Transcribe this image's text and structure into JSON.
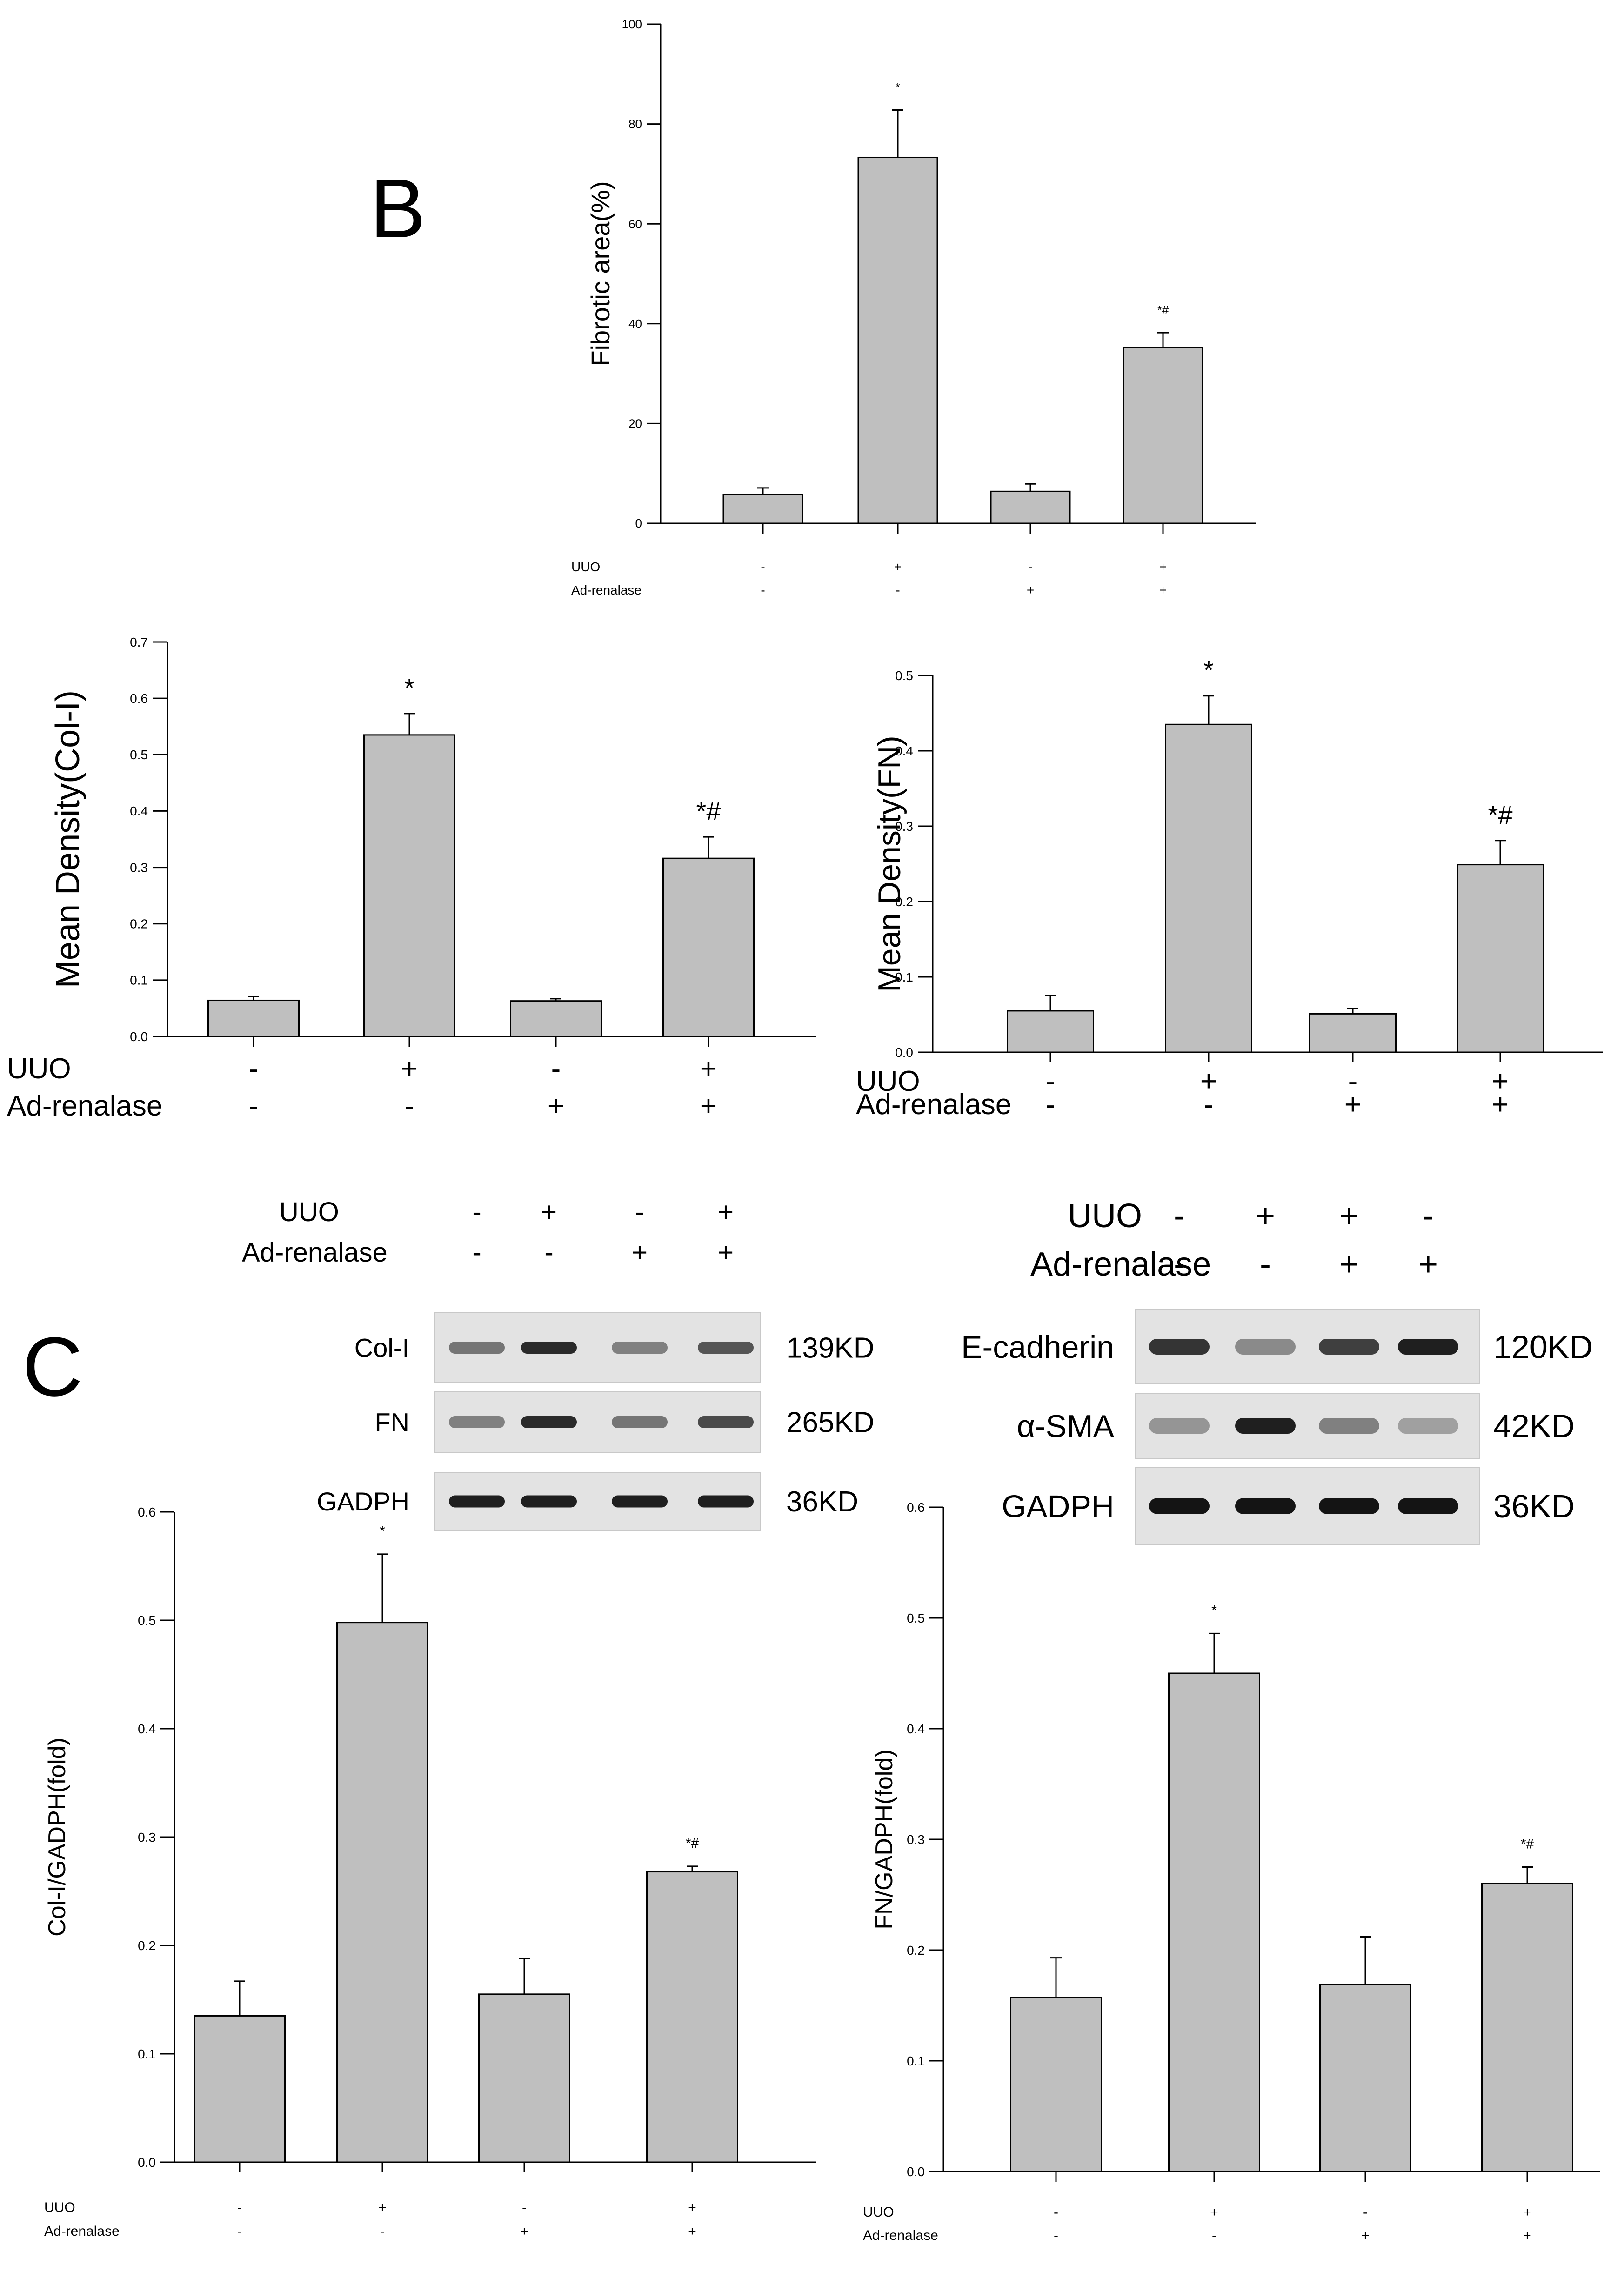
{
  "panel_labels": {
    "b": "B",
    "c": "C"
  },
  "chart_data": [
    {
      "id": "fibrotic",
      "type": "bar",
      "ylabel": "Fibrotic area(%)",
      "ylim": [
        0,
        100
      ],
      "yticks": [
        "0",
        "20",
        "40",
        "60",
        "80",
        "100"
      ],
      "values": [
        5.8,
        73.3,
        6.4,
        35.2
      ],
      "errors": [
        1.3,
        9.5,
        1.5,
        3.0
      ],
      "annotations": [
        "",
        "*",
        "",
        "*#"
      ],
      "row_labels": [
        "UUO",
        "Ad-renalase"
      ],
      "row_values": [
        [
          "-",
          "+",
          "-",
          "+"
        ],
        [
          "-",
          "-",
          "+",
          "+"
        ]
      ]
    },
    {
      "id": "coli-density",
      "type": "bar",
      "ylabel": "Mean Density(Col-I)",
      "ylim": [
        0,
        0.7
      ],
      "yticks": [
        "0.0",
        "0.1",
        "0.2",
        "0.3",
        "0.4",
        "0.5",
        "0.6",
        "0.7"
      ],
      "values": [
        0.064,
        0.535,
        0.063,
        0.316
      ],
      "errors": [
        0.007,
        0.038,
        0.004,
        0.038
      ],
      "annotations": [
        "",
        "*",
        "",
        "*#"
      ],
      "row_labels": [
        "UUO",
        "Ad-renalase"
      ],
      "row_values": [
        [
          "-",
          "+",
          "-",
          "+"
        ],
        [
          "-",
          "-",
          "+",
          "+"
        ]
      ]
    },
    {
      "id": "fn-density",
      "type": "bar",
      "ylabel": "Mean Density(FN)",
      "ylim": [
        0,
        0.5
      ],
      "yticks": [
        "0.0",
        "0.1",
        "0.2",
        "0.3",
        "0.4",
        "0.5"
      ],
      "values": [
        0.055,
        0.435,
        0.051,
        0.249
      ],
      "errors": [
        0.02,
        0.038,
        0.007,
        0.032
      ],
      "annotations": [
        "",
        "*",
        "",
        "*#"
      ],
      "row_labels": [
        "UUO",
        "Ad-renalase"
      ],
      "row_values": [
        [
          "-",
          "+",
          "-",
          "+"
        ],
        [
          "-",
          "-",
          "+",
          "+"
        ]
      ]
    },
    {
      "id": "coli-gadph",
      "type": "bar",
      "ylabel": "Col-I/GADPH(fold)",
      "ylim": [
        0,
        0.6
      ],
      "yticks": [
        "0.0",
        "0.1",
        "0.2",
        "0.3",
        "0.4",
        "0.5",
        "0.6"
      ],
      "values": [
        0.135,
        0.498,
        0.155,
        0.268
      ],
      "errors": [
        0.032,
        0.063,
        0.033,
        0.005
      ],
      "annotations": [
        "",
        "*",
        "",
        "*#"
      ],
      "row_labels": [
        "UUO",
        "Ad-renalase"
      ],
      "row_values": [
        [
          "-",
          "+",
          "-",
          "+"
        ],
        [
          "-",
          "-",
          "+",
          "+"
        ]
      ]
    },
    {
      "id": "fn-gadph",
      "type": "bar",
      "ylabel": "FN/GADPH(fold)",
      "ylim": [
        0,
        0.6
      ],
      "yticks": [
        "0.0",
        "0.1",
        "0.2",
        "0.3",
        "0.4",
        "0.5",
        "0.6"
      ],
      "values": [
        0.157,
        0.45,
        0.169,
        0.26
      ],
      "errors": [
        0.036,
        0.036,
        0.043,
        0.015
      ],
      "annotations": [
        "",
        "*",
        "",
        "*#"
      ],
      "row_labels": [
        "UUO",
        "Ad-renalase"
      ],
      "row_values": [
        [
          "-",
          "+",
          "-",
          "+"
        ],
        [
          "-",
          "-",
          "+",
          "+"
        ]
      ]
    }
  ],
  "blots": [
    {
      "id": "blot-left",
      "condition_labels": [
        "UUO",
        "Ad-renalase"
      ],
      "condition_values": [
        [
          "-",
          "+",
          "-",
          "+"
        ],
        [
          "-",
          "-",
          "+",
          "+"
        ]
      ],
      "bands": [
        {
          "protein": "Col-I",
          "size": "139KD",
          "intensity": [
            0.55,
            0.9,
            0.5,
            0.7
          ]
        },
        {
          "protein": "FN",
          "size": "265KD",
          "intensity": [
            0.5,
            0.9,
            0.55,
            0.75
          ]
        },
        {
          "protein": "GADPH",
          "size": "36KD",
          "intensity": [
            0.95,
            0.95,
            0.95,
            0.95
          ]
        }
      ]
    },
    {
      "id": "blot-right",
      "condition_labels": [
        "UUO",
        "Ad-renalase"
      ],
      "condition_values": [
        [
          "-",
          "+",
          "+",
          "-"
        ],
        [
          "-",
          "-",
          "+",
          "+"
        ]
      ],
      "bands": [
        {
          "protein": "E-cadherin",
          "size": "120KD",
          "intensity": [
            0.85,
            0.45,
            0.8,
            0.95
          ]
        },
        {
          "protein": "α-SMA",
          "size": "42KD",
          "intensity": [
            0.4,
            0.95,
            0.5,
            0.35
          ]
        },
        {
          "protein": "GADPH",
          "size": "36KD",
          "intensity": [
            1.0,
            1.0,
            1.0,
            1.0
          ]
        }
      ]
    }
  ]
}
